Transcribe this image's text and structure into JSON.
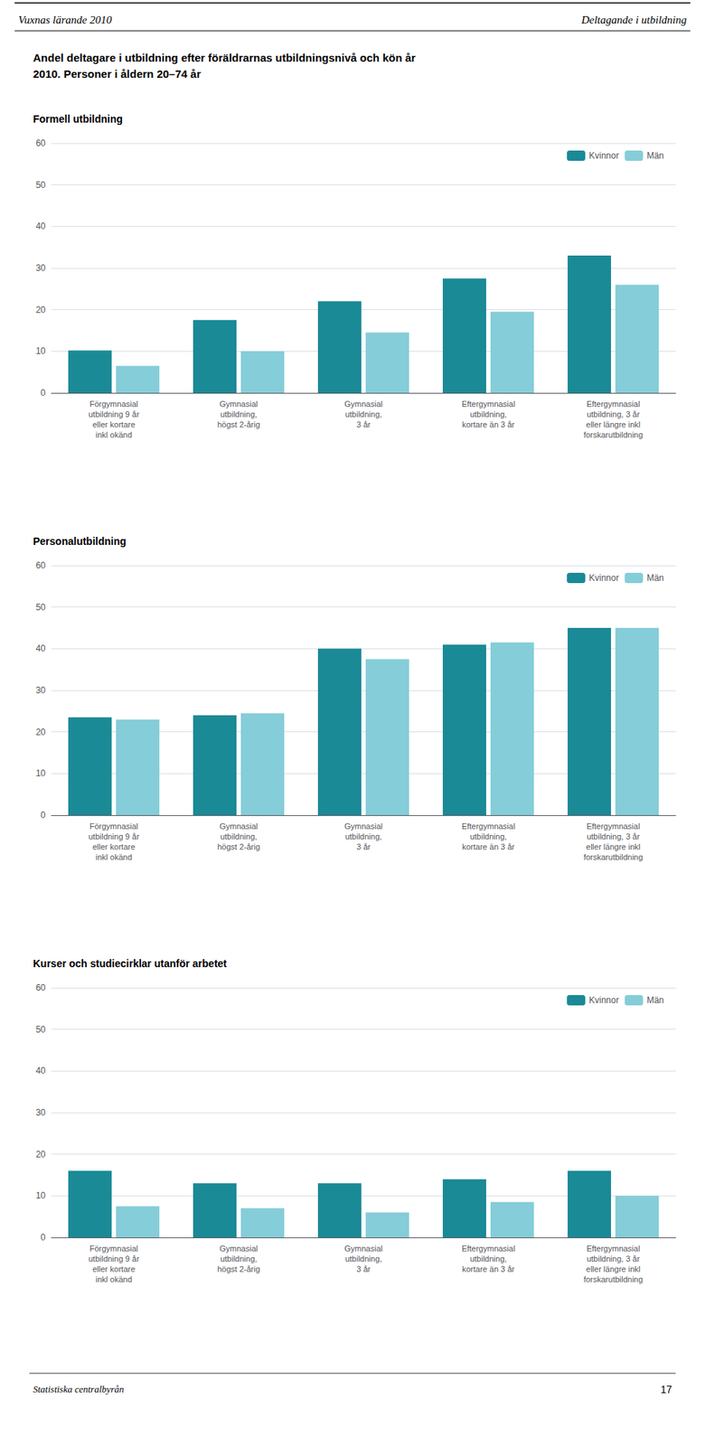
{
  "title": "Andel deltagare i utbildning efter föräldrarnas utbildningsnivå och kön år\n2010. Personer i åldern 20–74 år",
  "annotations": [
    "Vuxnas lärande 2010",
    "Deltagande i utbildning",
    "Statistiska centralbyrån",
    "17"
  ],
  "chart_data": [
    {
      "type": "bar",
      "title": "Formell utbildning",
      "categories": [
        "Förgymnasial\nutbildning 9 år\neller kortare\ninkl okänd",
        "Gymnasial\nutbildning,\nhögst 2-årig",
        "Gymnasial\nutbildning,\n3 år",
        "Eftergymnasial\nutbildning,\nkortare än 3 år",
        "Eftergymnasial\nutbildning, 3 år\neller längre inkl\nforskarutbildning"
      ],
      "series": [
        {
          "name": "Kvinnor",
          "color": "#1A8A96",
          "values": [
            10.2,
            17.5,
            22.0,
            27.5,
            33.0
          ]
        },
        {
          "name": "Män",
          "color": "#85CDD8",
          "values": [
            6.5,
            10.0,
            14.5,
            19.5,
            26.0
          ]
        }
      ],
      "ylim": [
        0,
        60
      ],
      "yticks": [
        0,
        10,
        20,
        30,
        40,
        50,
        60
      ],
      "grid": true,
      "legend": "upper right"
    },
    {
      "type": "bar",
      "title": "Personalutbildning",
      "categories": [
        "Förgymnasial\nutbildning 9 år\neller kortare\ninkl okänd",
        "Gymnasial\nutbildning,\nhögst 2-årig",
        "Gymnasial\nutbildning,\n3 år",
        "Eftergymnasial\nutbildning,\nkortare än 3 år",
        "Eftergymnasial\nutbildning, 3 år\neller längre inkl\nforskarutbildning"
      ],
      "series": [
        {
          "name": "Kvinnor",
          "color": "#1A8A96",
          "values": [
            23.5,
            24.0,
            40.0,
            41.0,
            45.0
          ]
        },
        {
          "name": "Män",
          "color": "#85CDD8",
          "values": [
            23.0,
            24.5,
            37.5,
            41.5,
            45.0
          ]
        }
      ],
      "ylim": [
        0,
        60
      ],
      "yticks": [
        0,
        10,
        20,
        30,
        40,
        50,
        60
      ],
      "grid": true,
      "legend": "upper right"
    },
    {
      "type": "bar",
      "title": "Kurser och studiecirklar utanför arbetet",
      "categories": [
        "Förgymnasial\nutbildning 9 år\neller kortare\ninkl okänd",
        "Gymnasial\nutbildning,\nhögst 2-årig",
        "Gymnasial\nutbildning,\n3 år",
        "Eftergymnasial\nutbildning,\nkortare än 3 år",
        "Eftergymnasial\nutbildning, 3 år\neller längre inkl\nforskarutbildning"
      ],
      "series": [
        {
          "name": "Kvinnor",
          "color": "#1A8A96",
          "values": [
            16.0,
            13.0,
            13.0,
            14.0,
            16.0
          ]
        },
        {
          "name": "Män",
          "color": "#85CDD8",
          "values": [
            7.5,
            7.0,
            6.0,
            8.5,
            10.0
          ]
        }
      ],
      "ylim": [
        0,
        60
      ],
      "yticks": [
        0,
        10,
        20,
        30,
        40,
        50,
        60
      ],
      "grid": true,
      "legend": "upper right"
    }
  ]
}
